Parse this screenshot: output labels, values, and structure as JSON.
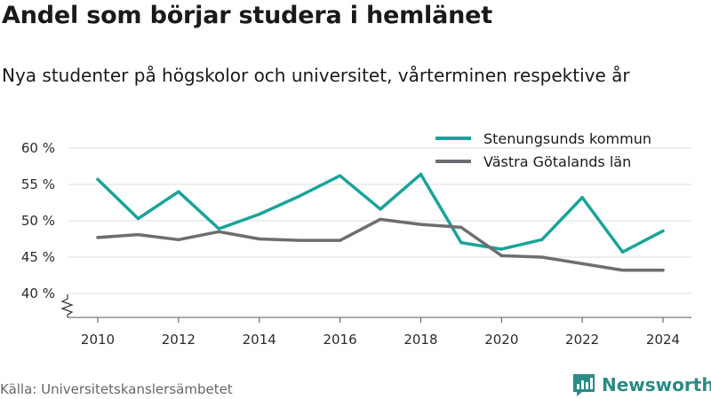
{
  "header": {
    "title": "Andel som börjar studera i hemlänet",
    "subtitle": "Nya studenter på högskolor och universitet, vårterminen respektive år"
  },
  "footer": {
    "source": "Källa: Universitetskanslersämbetet",
    "brand": "Newsworthy"
  },
  "colors": {
    "series_1": "#1aa39a",
    "series_2": "#6d6d72",
    "grid": "#dcdcdc",
    "brand": "#2a8c84"
  },
  "chart_data": {
    "type": "line",
    "title": "Andel som börjar studera i hemlänet",
    "subtitle": "Nya studenter på högskolor och universitet, vårterminen respektive år",
    "xlabel": "",
    "ylabel": "",
    "x": [
      2010,
      2011,
      2012,
      2013,
      2014,
      2015,
      2016,
      2017,
      2018,
      2019,
      2020,
      2021,
      2022,
      2023,
      2024
    ],
    "xticks": [
      "2010",
      "2012",
      "2014",
      "2016",
      "2018",
      "2020",
      "2022",
      "2024"
    ],
    "yticks": [
      "40 %",
      "45 %",
      "50 %",
      "55 %",
      "60 %"
    ],
    "ylim": [
      40,
      60
    ],
    "y_axis_break": true,
    "grid": true,
    "legend_position": "top-right",
    "series": [
      {
        "name": "Stenungsunds kommun",
        "color": "#1aa39a",
        "values": [
          55.7,
          50.3,
          54.0,
          48.9,
          50.9,
          53.4,
          56.2,
          51.6,
          56.4,
          47.0,
          46.1,
          47.4,
          53.2,
          45.7,
          48.6
        ]
      },
      {
        "name": "Västra Götalands län",
        "color": "#6d6d72",
        "values": [
          47.7,
          48.1,
          47.4,
          48.5,
          47.5,
          47.3,
          47.3,
          50.2,
          49.5,
          49.1,
          45.2,
          45.0,
          44.1,
          43.2,
          43.2
        ]
      }
    ]
  }
}
